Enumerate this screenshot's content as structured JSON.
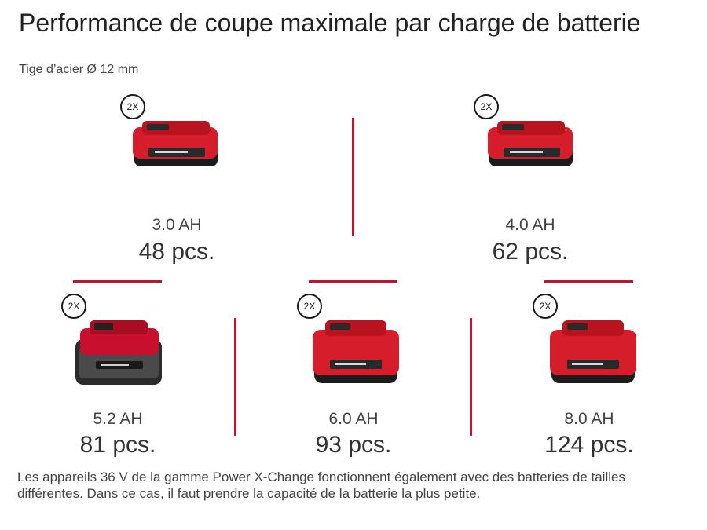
{
  "title": "Performance de coupe maximale par charge de batterie",
  "subtitle": "Tige d’acier Ø 12 mm",
  "accent_color": "#c8102e",
  "items": [
    {
      "badge": "2X",
      "capacity": "3.0 AH",
      "pieces": "48 pcs.",
      "icon": "battery-pack-icon"
    },
    {
      "badge": "2X",
      "capacity": "4.0 AH",
      "pieces": "62 pcs.",
      "icon": "battery-pack-icon"
    },
    {
      "badge": "2X",
      "capacity": "5.2 AH",
      "pieces": "81 pcs.",
      "icon": "battery-pack-icon"
    },
    {
      "badge": "2X",
      "capacity": "6.0 AH",
      "pieces": "93 pcs.",
      "icon": "battery-pack-icon"
    },
    {
      "badge": "2X",
      "capacity": "8.0 AH",
      "pieces": "124 pcs.",
      "icon": "battery-pack-icon"
    }
  ],
  "note": "Les appareils 36 V de la gamme Power X-Change fonctionnent également avec des batteries de tailles différentes. Dans ce cas, il faut prendre la capacité de la batterie la plus petite."
}
